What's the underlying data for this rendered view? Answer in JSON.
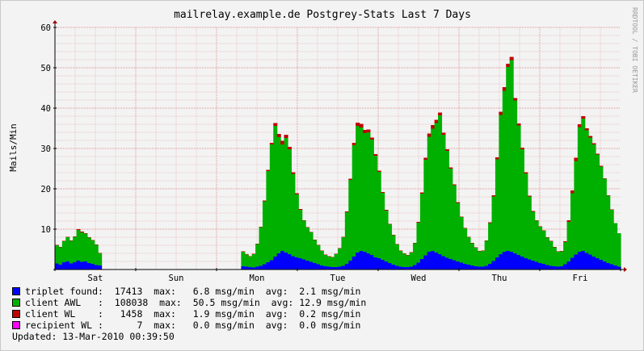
{
  "chart_data": {
    "type": "area",
    "title": "mailrelay.example.de Postgrey-Stats Last 7 Days",
    "ylabel": "Mails/Min",
    "watermark": "RRDTOOL / TOBI OETIKER",
    "ylim": [
      0,
      60
    ],
    "yticks": [
      "0",
      "10",
      "20",
      "30",
      "40",
      "50",
      "60"
    ],
    "xlabels": [
      "Sat",
      "Sun",
      "Mon",
      "Tue",
      "Wed",
      "Thu",
      "Fri"
    ],
    "x_days": 7,
    "grid": true,
    "series": [
      {
        "name": "triplet found",
        "color": "#0000ff",
        "values": [
          1.5,
          1.2,
          1.8,
          2.0,
          1.5,
          1.8,
          2.2,
          1.9,
          2.0,
          1.6,
          1.4,
          1.1,
          1.0,
          0,
          0,
          0,
          0,
          0,
          0,
          0,
          0,
          0,
          0,
          0,
          0,
          0,
          0,
          0,
          0,
          0,
          0,
          0,
          0,
          0,
          0,
          0,
          0,
          0,
          0,
          0,
          0,
          0,
          0,
          0,
          0,
          0,
          0,
          0,
          0,
          0,
          0,
          0,
          0.8,
          0.7,
          0.6,
          0.5,
          0.7,
          0.9,
          1.3,
          1.8,
          2.3,
          3.2,
          4.0,
          4.6,
          4.2,
          3.8,
          3.3,
          3.0,
          2.8,
          2.5,
          2.2,
          1.9,
          1.6,
          1.3,
          1.0,
          0.8,
          0.7,
          0.6,
          0.6,
          0.7,
          0.9,
          1.4,
          2.2,
          3.2,
          4.2,
          4.6,
          4.4,
          4.0,
          3.6,
          3.0,
          2.8,
          2.4,
          2.0,
          1.6,
          1.2,
          0.9,
          0.7,
          0.6,
          0.6,
          0.7,
          1.1,
          1.7,
          2.6,
          3.5,
          4.4,
          4.6,
          4.2,
          3.8,
          3.3,
          2.9,
          2.6,
          2.3,
          2.0,
          1.7,
          1.4,
          1.2,
          1.0,
          0.8,
          0.7,
          0.7,
          0.9,
          1.4,
          2.1,
          3.0,
          3.8,
          4.4,
          4.6,
          4.4,
          4.0,
          3.6,
          3.2,
          2.8,
          2.5,
          2.2,
          1.9,
          1.6,
          1.4,
          1.1,
          0.9,
          0.8,
          0.7,
          0.8,
          1.3,
          2.0,
          2.9,
          3.7,
          4.4,
          4.6,
          4.1,
          3.7,
          3.2,
          2.8,
          2.4,
          2.0,
          1.6,
          1.3,
          1.0,
          0.7
        ]
      },
      {
        "name": "client AWL",
        "color": "#00b000",
        "values": [
          4.5,
          4.3,
          5.2,
          6.0,
          5.6,
          6.3,
          7.6,
          7.3,
          6.9,
          6.3,
          5.8,
          5.0,
          3.0,
          0,
          0,
          0,
          0,
          0,
          0,
          0,
          0,
          0,
          0,
          0,
          0,
          0,
          0,
          0,
          0,
          0,
          0,
          0,
          0,
          0,
          0,
          0,
          0,
          0,
          0,
          0,
          0,
          0,
          0,
          0,
          0,
          0,
          0,
          0,
          0,
          0,
          0,
          0,
          3.6,
          3.0,
          2.6,
          3.3,
          5.6,
          9.6,
          15.6,
          22.6,
          28.7,
          32.4,
          28.8,
          26.4,
          28.4,
          26.0,
          20.4,
          15.6,
          12.0,
          9.6,
          8.2,
          7.3,
          5.7,
          4.7,
          3.6,
          2.8,
          2.5,
          2.4,
          3.2,
          4.5,
          7.1,
          12.8,
          20.0,
          27.6,
          31.4,
          30.6,
          29.4,
          30.0,
          28.6,
          25.2,
          21.4,
          16.6,
          12.6,
          9.6,
          7.3,
          5.3,
          3.9,
          3.3,
          2.9,
          3.5,
          5.4,
          9.9,
          16.2,
          23.7,
          28.5,
          30.3,
          32.1,
          34.4,
          30.1,
          26.5,
          22.4,
          18.6,
          14.5,
          11.3,
          8.8,
          6.8,
          5.5,
          4.6,
          3.8,
          3.9,
          6.2,
          10.1,
          16.0,
          24.3,
          34.5,
          39.9,
          45.6,
          47.5,
          37.9,
          32.1,
          26.6,
          21.0,
          15.6,
          12.1,
          10.2,
          9.0,
          8.2,
          6.8,
          6.1,
          4.7,
          3.7,
          3.7,
          5.5,
          9.8,
          16.0,
          23.2,
          30.9,
          32.8,
          30.4,
          29.0,
          27.8,
          25.7,
          23.1,
          20.5,
          16.7,
          13.5,
          10.5,
          8.3
        ]
      },
      {
        "name": "client WL",
        "color": "#c00000",
        "values": [
          0.1,
          0.1,
          0.1,
          0.1,
          0.1,
          0.1,
          0.2,
          0.2,
          0.1,
          0.1,
          0.1,
          0.1,
          0.1,
          0,
          0,
          0,
          0,
          0,
          0,
          0,
          0,
          0,
          0,
          0,
          0,
          0,
          0,
          0,
          0,
          0,
          0,
          0,
          0,
          0,
          0,
          0,
          0,
          0,
          0,
          0,
          0,
          0,
          0,
          0,
          0,
          0,
          0,
          0,
          0,
          0,
          0,
          0,
          0.1,
          0.1,
          0.1,
          0.1,
          0.1,
          0.1,
          0.2,
          0.3,
          0.4,
          0.7,
          0.8,
          0.9,
          0.8,
          0.6,
          0.4,
          0.3,
          0.2,
          0.1,
          0.1,
          0.1,
          0.1,
          0.1,
          0.1,
          0.1,
          0.1,
          0.1,
          0.1,
          0.1,
          0.1,
          0.2,
          0.3,
          0.6,
          0.8,
          0.9,
          0.8,
          0.7,
          0.5,
          0.4,
          0.3,
          0.2,
          0.2,
          0.1,
          0.1,
          0.1,
          0.1,
          0.1,
          0.1,
          0.1,
          0.1,
          0.2,
          0.3,
          0.5,
          0.8,
          0.9,
          0.8,
          0.7,
          0.5,
          0.4,
          0.3,
          0.2,
          0.2,
          0.1,
          0.1,
          0.1,
          0.1,
          0.1,
          0.1,
          0.1,
          0.1,
          0.2,
          0.3,
          0.5,
          0.8,
          0.9,
          0.8,
          0.8,
          0.6,
          0.5,
          0.4,
          0.3,
          0.2,
          0.2,
          0.1,
          0.1,
          0.1,
          0.1,
          0.1,
          0.1,
          0.1,
          0.1,
          0.2,
          0.4,
          0.7,
          0.8,
          0.7,
          0.6,
          0.5,
          0.4,
          0.3,
          0.2,
          0.2,
          0.1,
          0.1,
          0.1
        ]
      },
      {
        "name": "recipient WL",
        "color": "#ff00ff",
        "values": [
          0,
          0,
          0,
          0,
          0,
          0,
          0,
          0,
          0,
          0,
          0,
          0,
          0,
          0,
          0,
          0,
          0,
          0,
          0,
          0,
          0,
          0,
          0,
          0,
          0,
          0,
          0,
          0,
          0,
          0,
          0,
          0,
          0,
          0,
          0,
          0,
          0,
          0,
          0,
          0,
          0,
          0,
          0,
          0,
          0,
          0,
          0,
          0,
          0,
          0,
          0,
          0,
          0,
          0,
          0,
          0,
          0,
          0,
          0,
          0,
          0,
          0,
          0,
          0,
          0,
          0,
          0,
          0,
          0,
          0,
          0,
          0,
          0,
          0,
          0,
          0,
          0,
          0,
          0,
          0,
          0,
          0,
          0,
          0,
          0,
          0,
          0,
          0,
          0,
          0,
          0,
          0,
          0,
          0,
          0,
          0,
          0,
          0,
          0,
          0,
          0,
          0,
          0,
          0,
          0,
          0,
          0,
          0,
          0,
          0,
          0,
          0,
          0,
          0,
          0,
          0,
          0,
          0,
          0,
          0,
          0,
          0,
          0,
          0,
          0,
          0,
          0,
          0,
          0,
          0,
          0,
          0,
          0,
          0,
          0,
          0,
          0,
          0,
          0,
          0,
          0,
          0,
          0,
          0,
          0,
          0,
          0,
          0,
          0,
          0,
          0,
          0,
          0,
          0,
          0,
          0,
          0,
          0,
          0,
          0,
          0,
          0,
          0,
          0,
          0,
          0,
          0,
          0
        ]
      }
    ]
  },
  "legend": [
    {
      "color": "#0000ff",
      "text": "triplet found:  17413  max:   6.8 msg/min  avg:  2.1 msg/min"
    },
    {
      "color": "#00b000",
      "text": "client AWL   :  108038  max:  50.5 msg/min  avg: 12.9 msg/min"
    },
    {
      "color": "#c00000",
      "text": "client WL    :   1458  max:   1.9 msg/min  avg:  0.2 msg/min"
    },
    {
      "color": "#ff00ff",
      "text": "recipient WL :      7  max:   0.0 msg/min  avg:  0.0 msg/min"
    }
  ],
  "updated": "Updated: 13-Mar-2010 00:39:50"
}
